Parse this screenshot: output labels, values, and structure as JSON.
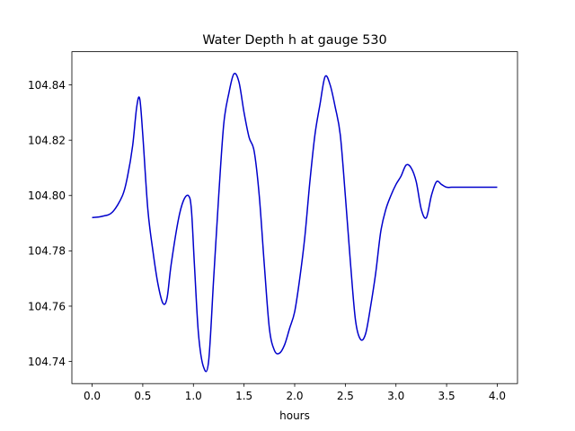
{
  "chart_data": {
    "type": "line",
    "title": "Water Depth h at gauge 530",
    "xlabel": "hours",
    "ylabel": "",
    "xlim": [
      -0.2,
      4.2
    ],
    "ylim": [
      104.732,
      104.852
    ],
    "xticks": [
      0.0,
      0.5,
      1.0,
      1.5,
      2.0,
      2.5,
      3.0,
      3.5,
      4.0
    ],
    "xtick_labels": [
      "0.0",
      "0.5",
      "1.0",
      "1.5",
      "2.0",
      "2.5",
      "3.0",
      "3.5",
      "4.0"
    ],
    "yticks": [
      104.74,
      104.76,
      104.78,
      104.8,
      104.82,
      104.84
    ],
    "ytick_labels": [
      "104.74",
      "104.76",
      "104.78",
      "104.80",
      "104.82",
      "104.84"
    ],
    "grid": false,
    "line_color": "#0000cc",
    "series": [
      {
        "x": [
          0.0,
          0.1,
          0.2,
          0.3,
          0.35,
          0.4,
          0.44,
          0.47,
          0.5,
          0.55,
          0.6,
          0.65,
          0.7,
          0.74,
          0.78,
          0.85,
          0.9,
          0.95,
          0.98,
          1.01,
          1.05,
          1.1,
          1.15,
          1.2,
          1.25,
          1.3,
          1.35,
          1.4,
          1.45,
          1.5,
          1.55,
          1.6,
          1.65,
          1.7,
          1.75,
          1.8,
          1.85,
          1.9,
          1.95,
          2.0,
          2.05,
          2.1,
          2.15,
          2.2,
          2.25,
          2.3,
          2.35,
          2.4,
          2.45,
          2.5,
          2.55,
          2.6,
          2.65,
          2.7,
          2.75,
          2.8,
          2.85,
          2.9,
          2.95,
          3.0,
          3.05,
          3.1,
          3.15,
          3.2,
          3.25,
          3.3,
          3.35,
          3.4,
          3.45,
          3.5,
          3.55,
          3.6,
          3.65,
          3.7,
          3.75,
          3.8,
          3.85,
          3.9,
          3.95,
          4.0
        ],
        "y": [
          104.792,
          104.7925,
          104.794,
          104.8,
          104.807,
          104.818,
          104.832,
          104.835,
          104.822,
          104.795,
          104.78,
          104.768,
          104.761,
          104.763,
          104.775,
          104.791,
          104.798,
          104.8,
          104.795,
          104.775,
          104.75,
          104.738,
          104.74,
          104.77,
          104.8,
          104.826,
          104.837,
          104.844,
          104.841,
          104.83,
          104.821,
          104.816,
          104.8,
          104.775,
          104.752,
          104.744,
          104.743,
          104.746,
          104.752,
          104.758,
          104.77,
          104.785,
          104.805,
          104.822,
          104.833,
          104.843,
          104.84,
          104.832,
          104.822,
          104.8,
          104.776,
          104.755,
          104.748,
          104.75,
          104.76,
          104.772,
          104.787,
          104.795,
          104.8,
          104.804,
          104.807,
          104.811,
          104.81,
          104.805,
          104.795,
          104.792,
          104.8,
          104.805,
          104.804,
          104.803,
          104.803,
          104.803,
          104.803,
          104.803,
          104.803,
          104.803,
          104.803,
          104.803,
          104.803,
          104.803
        ]
      }
    ]
  }
}
